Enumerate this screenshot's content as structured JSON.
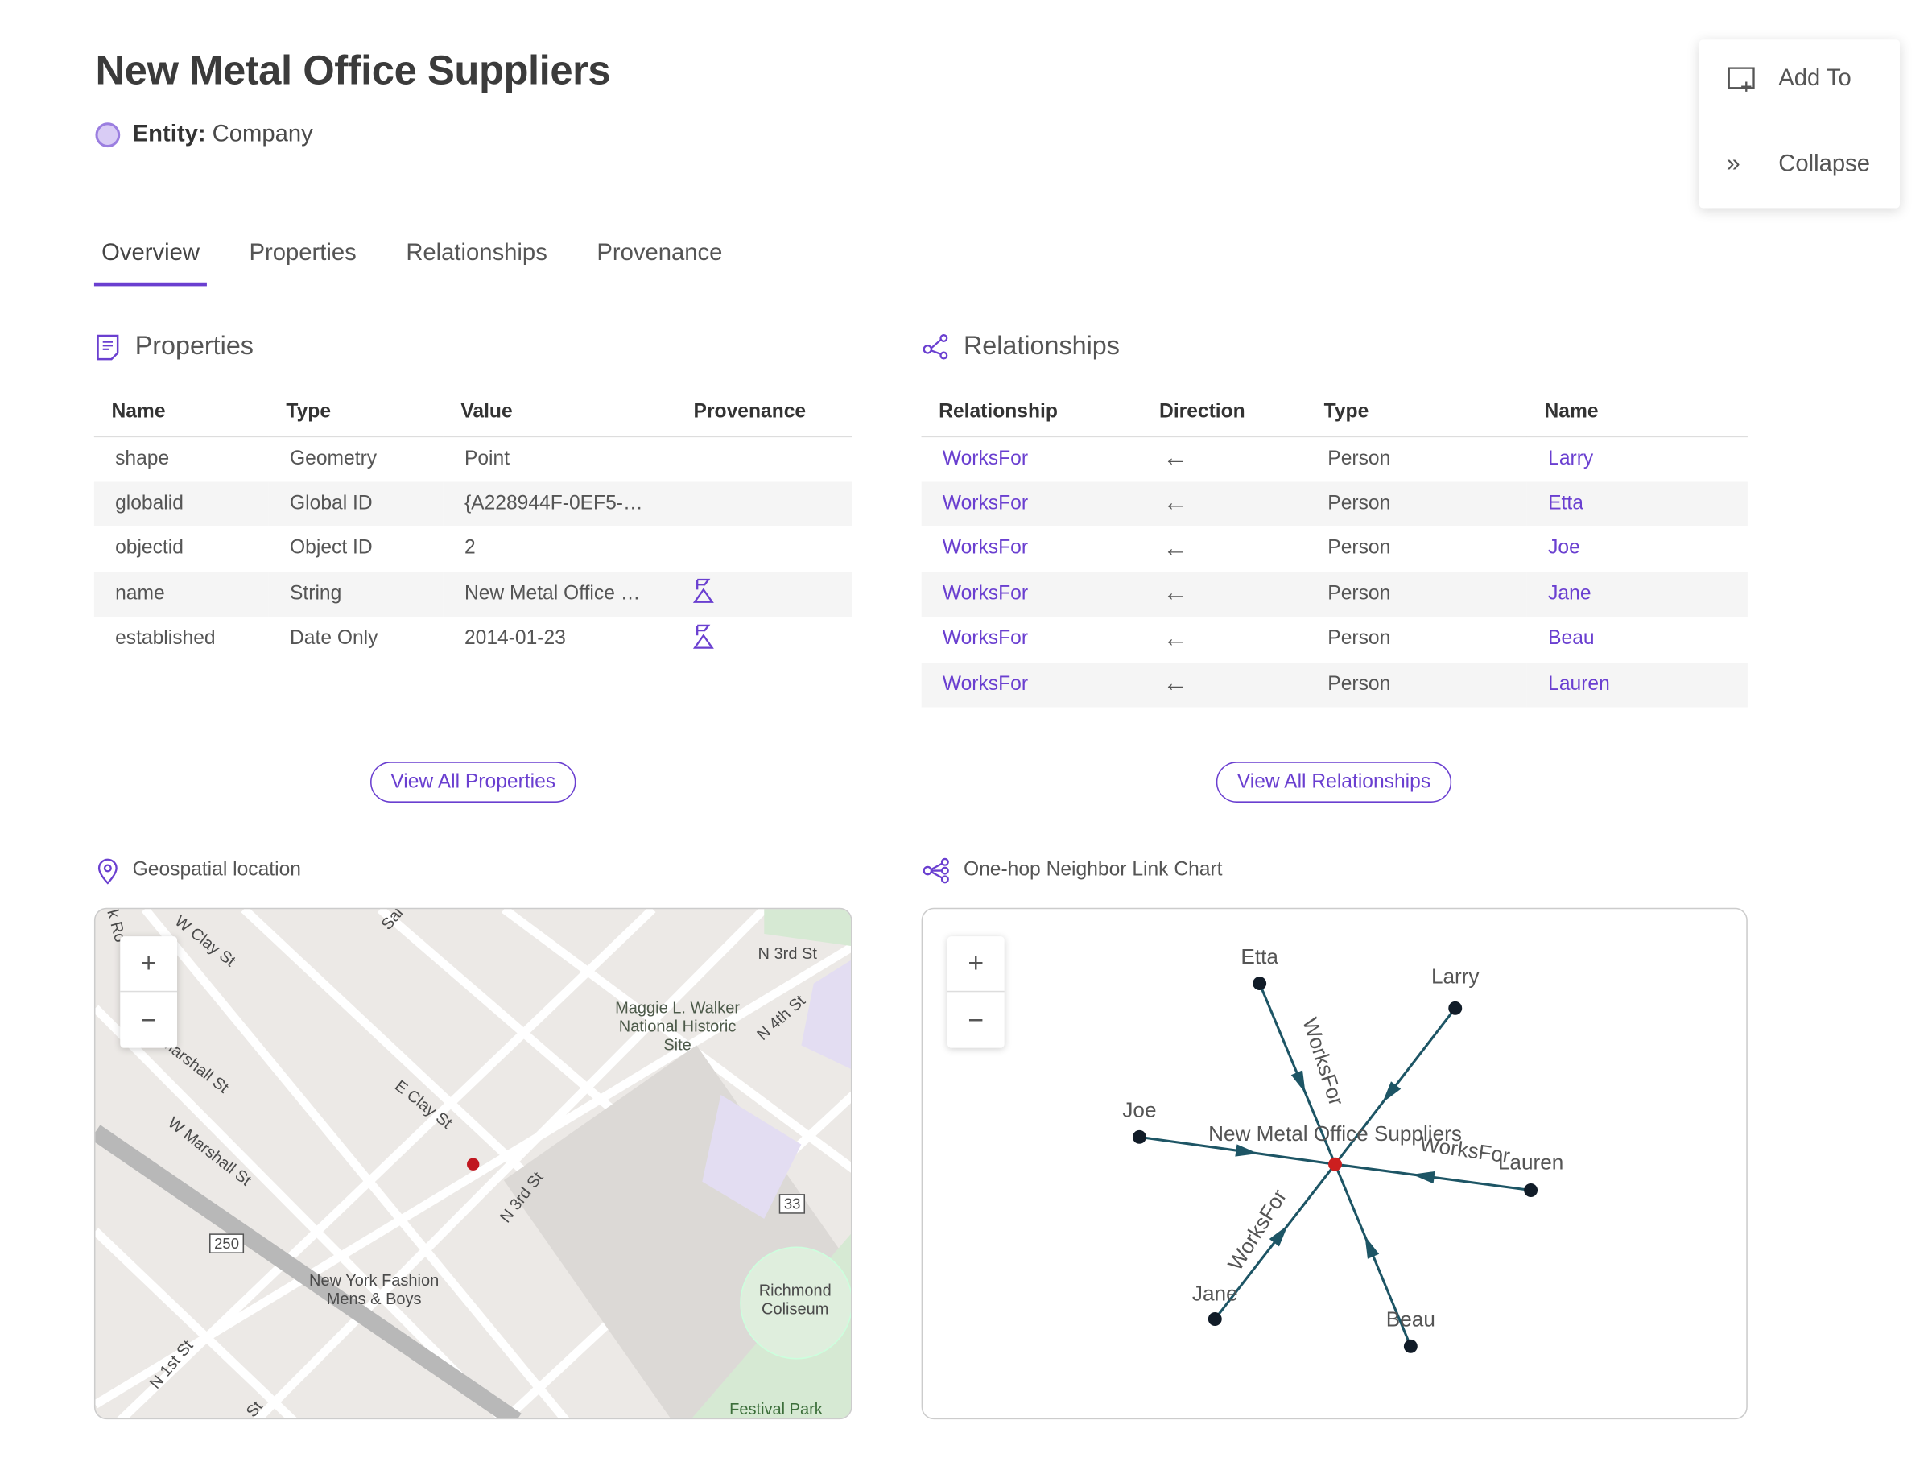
{
  "header": {
    "title": "New Metal Office Suppliers",
    "entity_label": "Entity:",
    "entity_value": "Company",
    "entity_color": "#d9ccf5"
  },
  "actions": {
    "add_to": "Add To",
    "collapse": "Collapse"
  },
  "tabs": [
    {
      "label": "Overview",
      "active": true
    },
    {
      "label": "Properties"
    },
    {
      "label": "Relationships"
    },
    {
      "label": "Provenance"
    }
  ],
  "properties": {
    "title": "Properties",
    "columns": [
      "Name",
      "Type",
      "Value",
      "Provenance"
    ],
    "rows": [
      [
        "shape",
        "Geometry",
        "Point",
        ""
      ],
      [
        "globalid",
        "Global ID",
        "{A228944F-0EF5-…",
        ""
      ],
      [
        "objectid",
        "Object ID",
        "2",
        ""
      ],
      [
        "name",
        "String",
        "New Metal Office …",
        "provenance-icon"
      ],
      [
        "established",
        "Date Only",
        "2014-01-23",
        "provenance-icon"
      ]
    ],
    "view_all": "View All Properties"
  },
  "relationships": {
    "title": "Relationships",
    "columns": [
      "Relationship",
      "Direction",
      "Type",
      "Name"
    ],
    "rows": [
      [
        "WorksFor",
        "←",
        "Person",
        "Larry"
      ],
      [
        "WorksFor",
        "←",
        "Person",
        "Etta"
      ],
      [
        "WorksFor",
        "←",
        "Person",
        "Joe"
      ],
      [
        "WorksFor",
        "←",
        "Person",
        "Jane"
      ],
      [
        "WorksFor",
        "←",
        "Person",
        "Beau"
      ],
      [
        "WorksFor",
        "←",
        "Person",
        "Lauren"
      ]
    ],
    "view_all": "View All Relationships"
  },
  "map": {
    "title": "Geospatial location",
    "zoom_in": "+",
    "zoom_out": "−",
    "labels": [
      "W Clay St",
      "N 3rd St",
      "N 4th St",
      "Maggie L. Walker National Historic Site",
      "E Clay St",
      "W Marshall St",
      "Marshall St",
      "N 3rd St",
      "33",
      "250",
      "New York Fashion Mens & Boys",
      "Richmond Coliseum",
      "Festival Park",
      "N 1st St",
      "Sal",
      "St",
      "k Ro"
    ]
  },
  "link_chart": {
    "title": "One-hop Neighbor Link Chart",
    "zoom_in": "+",
    "zoom_out": "−",
    "center": "New Metal Office Suppliers",
    "edge_label": "WorksFor",
    "nodes": [
      "Etta",
      "Larry",
      "Joe",
      "Lauren",
      "Jane",
      "Beau"
    ],
    "accent": "#6a3fd0",
    "edge_color": "#1d5565",
    "center_color": "#cc1f1f"
  }
}
